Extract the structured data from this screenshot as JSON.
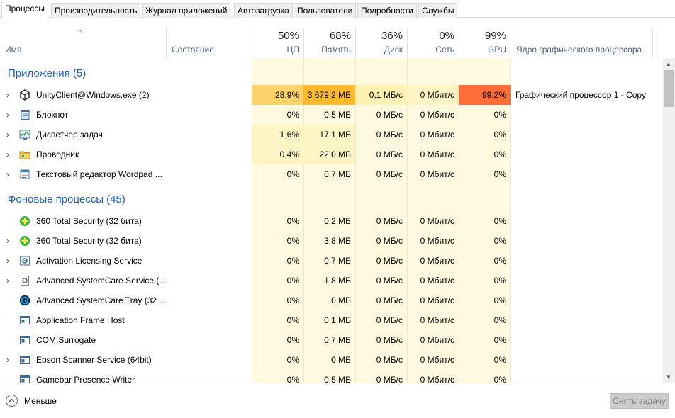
{
  "tabs": [
    "Процессы",
    "Производительность",
    "Журнал приложений",
    "Автозагрузка",
    "Пользователи",
    "Подробности",
    "Службы"
  ],
  "header": {
    "name": "Имя",
    "status": "Состояние",
    "cpu_pct": "50%",
    "cpu": "ЦП",
    "mem_pct": "68%",
    "mem": "Память",
    "disk_pct": "36%",
    "disk": "Диск",
    "net_pct": "0%",
    "net": "Сеть",
    "gpu_pct": "99%",
    "gpu": "GPU",
    "gpu_engine": "Ядро графического процессора"
  },
  "groups": {
    "apps": "Приложения (5)",
    "background": "Фоновые процессы (45)"
  },
  "apps": [
    {
      "name": "UnityClient@Windows.exe (2)",
      "cpu": "28,9%",
      "mem": "3 679,2 МБ",
      "disk": "0,1 МБ/с",
      "net": "0 Мбит/с",
      "gpu": "99,2%",
      "engine": "Графический процессор 1 - Copy",
      "icon": "unity-icon"
    },
    {
      "name": "Блокнот",
      "cpu": "0%",
      "mem": "0,5 МБ",
      "disk": "0 МБ/с",
      "net": "0 Мбит/с",
      "gpu": "0%",
      "engine": "",
      "icon": "notepad-icon"
    },
    {
      "name": "Диспетчер задач",
      "cpu": "1,6%",
      "mem": "17,1 МБ",
      "disk": "0 МБ/с",
      "net": "0 Мбит/с",
      "gpu": "0%",
      "engine": "",
      "icon": "task-manager-icon"
    },
    {
      "name": "Проводник",
      "cpu": "0,4%",
      "mem": "22,0 МБ",
      "disk": "0 МБ/с",
      "net": "0 Мбит/с",
      "gpu": "0%",
      "engine": "",
      "icon": "explorer-folder-icon"
    },
    {
      "name": "Текстовый редактор Wordpad ...",
      "cpu": "0%",
      "mem": "0,7 МБ",
      "disk": "0 МБ/с",
      "net": "0 Мбит/с",
      "gpu": "0%",
      "engine": "",
      "icon": "wordpad-icon"
    }
  ],
  "background": [
    {
      "name": "360 Total Security (32 бита)",
      "cpu": "0%",
      "mem": "0,2 МБ",
      "disk": "0 МБ/с",
      "net": "0 Мбит/с",
      "gpu": "0%",
      "icon": "security-plus-icon",
      "expandable": false
    },
    {
      "name": "360 Total Security (32 бита)",
      "cpu": "0%",
      "mem": "3,8 МБ",
      "disk": "0 МБ/с",
      "net": "0 Мбит/с",
      "gpu": "0%",
      "icon": "security-plus-icon",
      "expandable": true
    },
    {
      "name": "Activation Licensing Service",
      "cpu": "0%",
      "mem": "0,7 МБ",
      "disk": "0 МБ/с",
      "net": "0 Мбит/с",
      "gpu": "0%",
      "icon": "service-gear-icon",
      "expandable": true
    },
    {
      "name": "Advanced SystemCare Service (...",
      "cpu": "0%",
      "mem": "1,8 МБ",
      "disk": "0 МБ/с",
      "net": "0 Мбит/с",
      "gpu": "0%",
      "icon": "service-doc-icon",
      "expandable": true
    },
    {
      "name": "Advanced SystemCare Tray (32 ...",
      "cpu": "0%",
      "mem": "0 МБ",
      "disk": "0 МБ/с",
      "net": "0 Мбит/с",
      "gpu": "0%",
      "icon": "systemcare-icon",
      "expandable": false
    },
    {
      "name": "Application Frame Host",
      "cpu": "0%",
      "mem": "0,1 МБ",
      "disk": "0 МБ/с",
      "net": "0 Мбит/с",
      "gpu": "0%",
      "icon": "window-app-icon",
      "expandable": false
    },
    {
      "name": "COM Surrogate",
      "cpu": "0%",
      "mem": "0,7 МБ",
      "disk": "0 МБ/с",
      "net": "0 Мбит/с",
      "gpu": "0%",
      "icon": "window-app-icon",
      "expandable": false
    },
    {
      "name": "Epson Scanner Service (64bit)",
      "cpu": "0%",
      "mem": "0 МБ",
      "disk": "0 МБ/с",
      "net": "0 Мбит/с",
      "gpu": "0%",
      "icon": "window-app-icon",
      "expandable": true
    },
    {
      "name": "Gamebar Presence Writer",
      "cpu": "0%",
      "mem": "0,5 МБ",
      "disk": "0 МБ/с",
      "net": "0 Мбит/с",
      "gpu": "0%",
      "icon": "window-app-icon",
      "expandable": false
    }
  ],
  "footer": {
    "less": "Меньше",
    "end_task": "Снять задачу"
  },
  "colors": {
    "col_bg": "#fff9e0",
    "col_bg_light": "#fffbec",
    "cpu_hot": "#ffd36b",
    "mem_hot": "#ffb92f",
    "disk_warm": "#fff0b3",
    "gpu_hot": "#fd6d37",
    "group_text": "#1f5fbf"
  }
}
